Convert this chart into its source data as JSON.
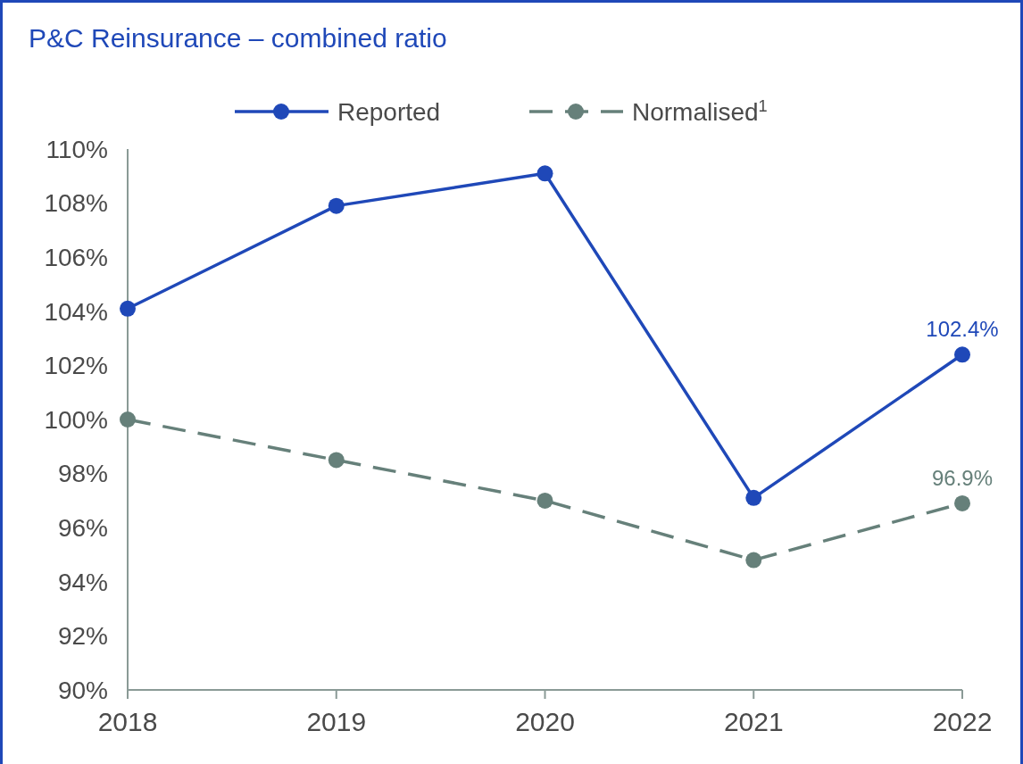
{
  "chart_data": {
    "type": "line",
    "title": "P&C Reinsurance – combined ratio",
    "categories": [
      "2018",
      "2019",
      "2020",
      "2021",
      "2022"
    ],
    "series": [
      {
        "name": "Reported",
        "color": "#1f48b8",
        "values": [
          104.1,
          107.9,
          109.1,
          97.1,
          102.4
        ],
        "value_labels": [
          null,
          null,
          null,
          null,
          "102.4%"
        ],
        "line_style": "solid"
      },
      {
        "name": "Normalised$^{1}$",
        "color": "#66807a",
        "values": [
          100.0,
          98.5,
          97.0,
          94.8,
          96.9
        ],
        "value_labels": [
          null,
          null,
          null,
          null,
          "96.9%"
        ],
        "line_style": "dashed"
      }
    ],
    "ylim": [
      90,
      110
    ],
    "yticks": [
      {
        "value": 90,
        "label": "90%"
      },
      {
        "value": 92,
        "label": "92%"
      },
      {
        "value": 94,
        "label": "94%"
      },
      {
        "value": 96,
        "label": "96%"
      },
      {
        "value": 98,
        "label": "98%"
      },
      {
        "value": 100,
        "label": "100%"
      },
      {
        "value": 102,
        "label": "102%"
      },
      {
        "value": 104,
        "label": "104%"
      },
      {
        "value": 106,
        "label": "106%"
      },
      {
        "value": 108,
        "label": "108%"
      },
      {
        "value": 110,
        "label": "110%"
      }
    ],
    "marker": "circle",
    "legend": "top",
    "grid": false
  }
}
